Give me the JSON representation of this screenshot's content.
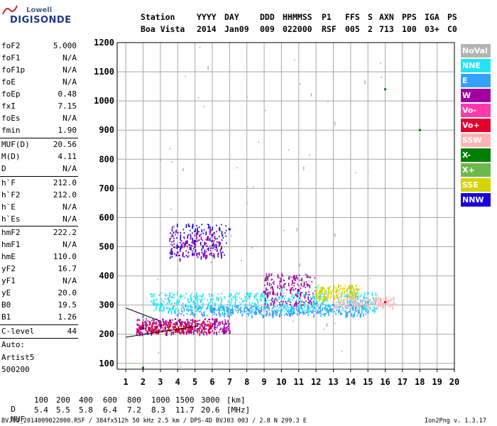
{
  "logo": {
    "line1": "Lowell",
    "line2": "DIGISONDE"
  },
  "header": {
    "station_label": "Station",
    "station_value": "Boa Vista",
    "yyyy_label": "YYYY",
    "yyyy_value": "2014",
    "day_label": "DAY",
    "day_value": "Jan09",
    "ddd_label": "DDD",
    "ddd_value": "009",
    "hhmmss_label": "HHMMSS",
    "hhmmss_value": "022000",
    "p1_label": "P1",
    "p1_value": "RSF",
    "ffs_label": "FFS",
    "ffs_value": "005",
    "s_label": "S",
    "s_value": "2",
    "axn_label": "AXN",
    "axn_value": "713",
    "pps_label": "PPS",
    "pps_value": "100",
    "iga_label": "IGA",
    "iga_value": "03+",
    "ps_label": "PS",
    "ps_value": "C0"
  },
  "params": {
    "group1": [
      {
        "label": "foF2",
        "value": "5.000"
      },
      {
        "label": "foF1",
        "value": "N/A"
      },
      {
        "label": "foF1p",
        "value": "N/A"
      },
      {
        "label": "foE",
        "value": "N/A"
      },
      {
        "label": "foEp",
        "value": "0.48"
      },
      {
        "label": "fxI",
        "value": "7.15"
      },
      {
        "label": "foEs",
        "value": "N/A"
      },
      {
        "label": "fmin",
        "value": "1.90"
      }
    ],
    "group2": [
      {
        "label": "MUF(D)",
        "value": "20.56"
      },
      {
        "label": "M(D)",
        "value": "4.11"
      },
      {
        "label": "D",
        "value": "N/A"
      }
    ],
    "group3": [
      {
        "label": "h`F",
        "value": "212.0"
      },
      {
        "label": "h`F2",
        "value": "212.0"
      },
      {
        "label": "h`E",
        "value": "N/A"
      },
      {
        "label": "h`Es",
        "value": "N/A"
      }
    ],
    "group4": [
      {
        "label": "hmF2",
        "value": "222.2"
      },
      {
        "label": "hmF1",
        "value": "N/A"
      },
      {
        "label": "hmE",
        "value": "110.0"
      },
      {
        "label": "yF2",
        "value": "16.7"
      },
      {
        "label": "yF1",
        "value": "N/A"
      },
      {
        "label": "yE",
        "value": "20.0"
      },
      {
        "label": "B0",
        "value": "19.5"
      },
      {
        "label": "B1",
        "value": "1.26"
      }
    ],
    "clevel": {
      "label": "C-level",
      "value": "44"
    },
    "auto_label": "Auto:",
    "artist": "Artist5",
    "code": "500200"
  },
  "legend": [
    {
      "label": "NoVal",
      "color": "#b4b4b4"
    },
    {
      "label": "NNE",
      "color": "#22e4f4"
    },
    {
      "label": "E",
      "color": "#36a0ff"
    },
    {
      "label": "W",
      "color": "#a000a0"
    },
    {
      "label": "Vo-",
      "color": "#ff3aa8"
    },
    {
      "label": "Vo+",
      "color": "#e4002c"
    },
    {
      "label": "SSW",
      "color": "#ffb4b4"
    },
    {
      "label": "X-",
      "color": "#008000"
    },
    {
      "label": "X+",
      "color": "#6cb84c"
    },
    {
      "label": "SSE",
      "color": "#d4d400"
    },
    {
      "label": "NNW",
      "color": "#1800dc"
    }
  ],
  "chart_data": {
    "type": "scatter",
    "xlim": [
      0.5,
      20
    ],
    "ylim": [
      80,
      1200
    ],
    "x_ticks": [
      1,
      2,
      3,
      4,
      5,
      6,
      7,
      8,
      9,
      10,
      11,
      12,
      13,
      14,
      15,
      16,
      17,
      18,
      19,
      20
    ],
    "y_ticks": [
      100,
      200,
      300,
      400,
      500,
      600,
      700,
      800,
      900,
      1000,
      1100,
      1200
    ],
    "grid": true,
    "series": [
      {
        "color": "#22e4f4",
        "points": [
          [
            3,
            300
          ],
          [
            4,
            310
          ],
          [
            5,
            305
          ],
          [
            6,
            320
          ],
          [
            7,
            330
          ],
          [
            8,
            340
          ],
          [
            9,
            345
          ],
          [
            10,
            350
          ],
          [
            11,
            340
          ],
          [
            12,
            360
          ],
          [
            13,
            350
          ],
          [
            14,
            345
          ],
          [
            15,
            340
          ]
        ]
      },
      {
        "color": "#36a0ff",
        "points": [
          [
            2,
            260
          ],
          [
            4,
            265
          ],
          [
            6,
            280
          ],
          [
            8,
            290
          ],
          [
            10,
            300
          ],
          [
            12,
            305
          ],
          [
            13,
            300
          ],
          [
            14,
            300
          ],
          [
            15,
            310
          ]
        ]
      },
      {
        "color": "#a000a0",
        "points": [
          [
            2,
            230
          ],
          [
            3,
            240
          ],
          [
            4,
            480
          ],
          [
            5,
            500
          ],
          [
            6,
            520
          ],
          [
            9,
            345
          ],
          [
            10,
            360
          ],
          [
            11,
            350
          ]
        ]
      },
      {
        "color": "#e4002c",
        "points": [
          [
            2,
            225
          ],
          [
            3,
            235
          ],
          [
            5,
            245
          ],
          [
            16,
            310
          ]
        ]
      },
      {
        "color": "#ffb4b4",
        "points": [
          [
            9,
            280
          ],
          [
            11,
            300
          ],
          [
            13,
            310
          ],
          [
            14,
            320
          ],
          [
            15,
            315
          ]
        ]
      },
      {
        "color": "#d4d400",
        "points": [
          [
            12,
            345
          ],
          [
            13,
            350
          ],
          [
            14,
            340
          ]
        ]
      },
      {
        "color": "#1800dc",
        "points": [
          [
            2,
            220
          ],
          [
            3,
            230
          ],
          [
            4,
            500
          ],
          [
            5,
            520
          ],
          [
            6,
            540
          ],
          [
            7,
            560
          ]
        ]
      },
      {
        "color": "#008000",
        "points": [
          [
            2,
            85
          ],
          [
            16,
            1040
          ],
          [
            18,
            900
          ]
        ]
      }
    ]
  },
  "distances": {
    "d_label": "D",
    "values": [
      "100",
      "200",
      "400",
      "600",
      "800",
      "1000",
      "1500",
      "3000"
    ],
    "d_unit": "[km]",
    "muf_label": "MUF",
    "mufs": [
      "5.4",
      "5.5",
      "5.8",
      "6.4",
      "7.2",
      "8.3",
      "11.7",
      "20.6"
    ],
    "muf_unit": "[MHz]"
  },
  "footer": {
    "left": "BVJ03_2014009022000.RSF / 384fx512h 50 kHz 2.5 km / DPS-4D BVJ03 003 / 2.8 N 299.3 E",
    "right": "Ion2Png v. 1.3.17"
  }
}
